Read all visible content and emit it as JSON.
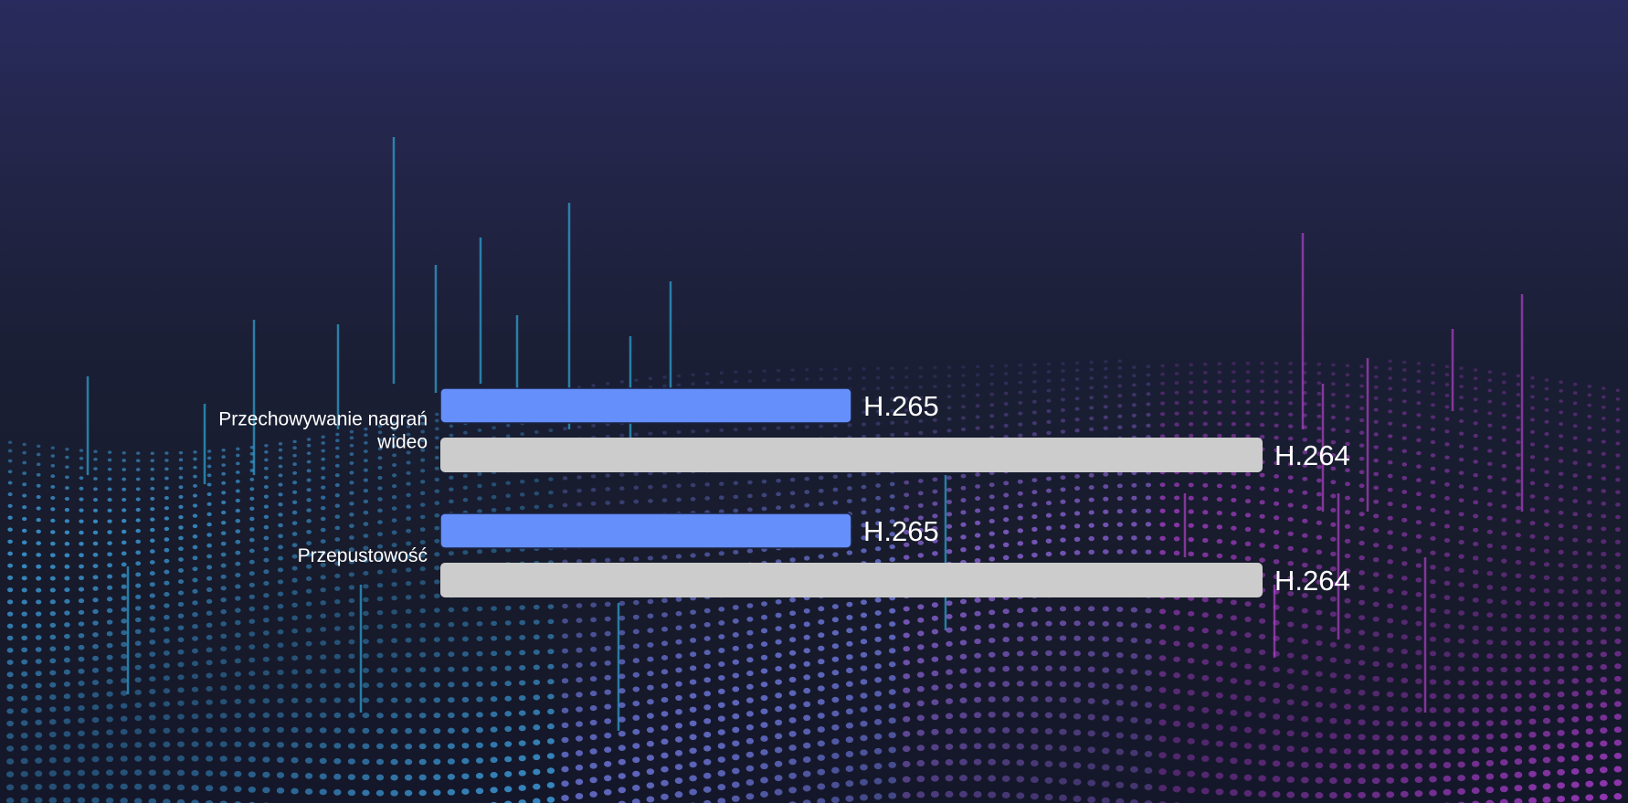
{
  "chart_data": {
    "type": "bar",
    "orientation": "horizontal",
    "categories": [
      "Przechowywanie nagrań wideo",
      "Przepustowość"
    ],
    "series": [
      {
        "name": "H.265",
        "values": [
          50,
          50
        ],
        "color": "#658ffb"
      },
      {
        "name": "H.264",
        "values": [
          100,
          100
        ],
        "color": "#cccccc"
      }
    ],
    "xlim": [
      0,
      100
    ],
    "grid": false,
    "legend": "none"
  },
  "colors": {
    "accent_blue": "#658ffb",
    "bar_gray": "#cccccc",
    "dots_left": "#3fa4e6",
    "dots_right": "#b03fd2"
  }
}
